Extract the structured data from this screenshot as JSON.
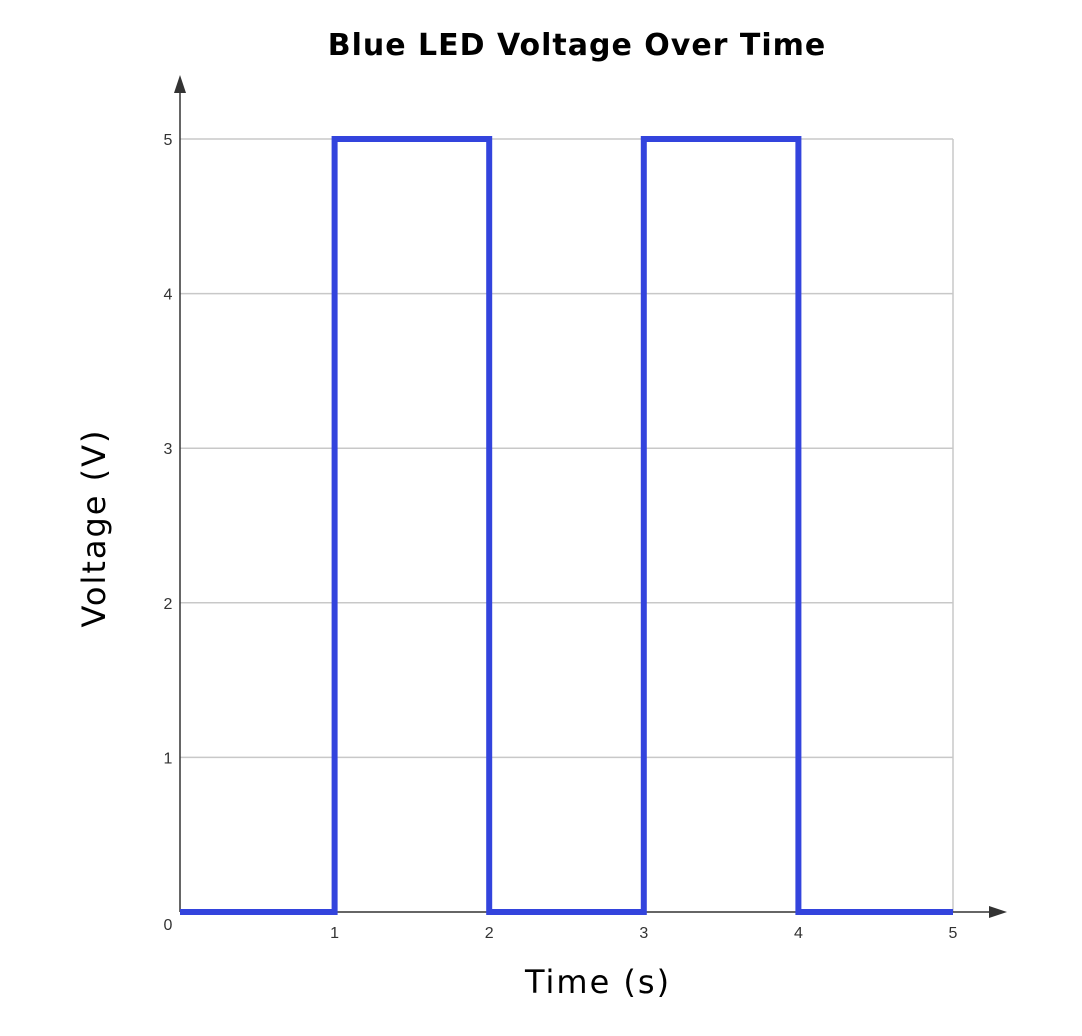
{
  "chart_data": {
    "type": "line",
    "step": true,
    "title": "Blue LED Voltage Over Time",
    "xlabel": "Time (s)",
    "ylabel": "Voltage (V)",
    "xlim": [
      0,
      5
    ],
    "ylim": [
      0,
      5
    ],
    "x_ticks": [
      "1",
      "2",
      "3",
      "4",
      "5"
    ],
    "y_ticks": [
      "0",
      "1",
      "2",
      "3",
      "4",
      "5"
    ],
    "grid": true,
    "series": [
      {
        "color": "#3344dd",
        "points": [
          [
            0,
            0
          ],
          [
            1,
            0
          ],
          [
            1,
            5
          ],
          [
            2,
            5
          ],
          [
            2,
            0
          ],
          [
            3,
            0
          ],
          [
            3,
            5
          ],
          [
            4,
            5
          ],
          [
            4,
            0
          ],
          [
            5,
            0
          ]
        ]
      }
    ]
  },
  "colors": {
    "grid": "#c8c8c8",
    "axis": "#333333"
  }
}
